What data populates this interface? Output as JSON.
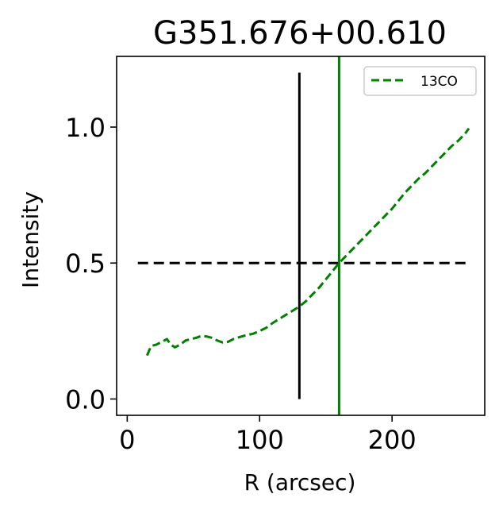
{
  "chart_data": {
    "type": "line",
    "title": "G351.676+00.610",
    "xlabel": "R (arcsec)",
    "ylabel": "Intensity",
    "xlim": [
      -8,
      270
    ],
    "ylim": [
      -0.06,
      1.26
    ],
    "xticks": [
      0,
      100,
      200
    ],
    "xtick_labels": [
      "0",
      "100",
      "200"
    ],
    "yticks": [
      0.0,
      0.5,
      1.0
    ],
    "ytick_labels": [
      "0.0",
      "0.5",
      "1.0"
    ],
    "grid": false,
    "legend_position": "top-right",
    "series": [
      {
        "name": "13CO",
        "color": "#008000",
        "style": "dashed",
        "x": [
          15,
          18,
          22,
          26,
          30,
          33,
          36,
          40,
          44,
          48,
          52,
          56,
          60,
          64,
          68,
          72,
          76,
          80,
          85,
          90,
          95,
          100,
          105,
          110,
          115,
          120,
          125,
          130,
          135,
          140,
          145,
          150,
          155,
          160,
          165,
          170,
          175,
          180,
          185,
          190,
          195,
          200,
          205,
          210,
          215,
          220,
          225,
          230,
          235,
          240,
          245,
          250,
          255,
          258
        ],
        "y": [
          0.16,
          0.195,
          0.2,
          0.21,
          0.22,
          0.2,
          0.19,
          0.2,
          0.215,
          0.22,
          0.225,
          0.232,
          0.23,
          0.225,
          0.215,
          0.208,
          0.21,
          0.22,
          0.228,
          0.235,
          0.24,
          0.25,
          0.262,
          0.28,
          0.295,
          0.31,
          0.325,
          0.34,
          0.36,
          0.385,
          0.41,
          0.44,
          0.47,
          0.5,
          0.525,
          0.55,
          0.575,
          0.6,
          0.625,
          0.65,
          0.675,
          0.7,
          0.73,
          0.76,
          0.785,
          0.81,
          0.83,
          0.855,
          0.88,
          0.905,
          0.93,
          0.95,
          0.975,
          0.995
        ]
      }
    ],
    "reference_lines": [
      {
        "kind": "horizontal",
        "y": 0.5,
        "x_range": [
          8,
          258
        ],
        "color": "#000000",
        "style": "dashed"
      },
      {
        "kind": "vertical",
        "x": 130,
        "y_range": [
          0.0,
          1.2
        ],
        "color": "#000000",
        "style": "solid"
      },
      {
        "kind": "vertical",
        "x": 160,
        "color": "#008000",
        "style": "solid"
      }
    ]
  }
}
